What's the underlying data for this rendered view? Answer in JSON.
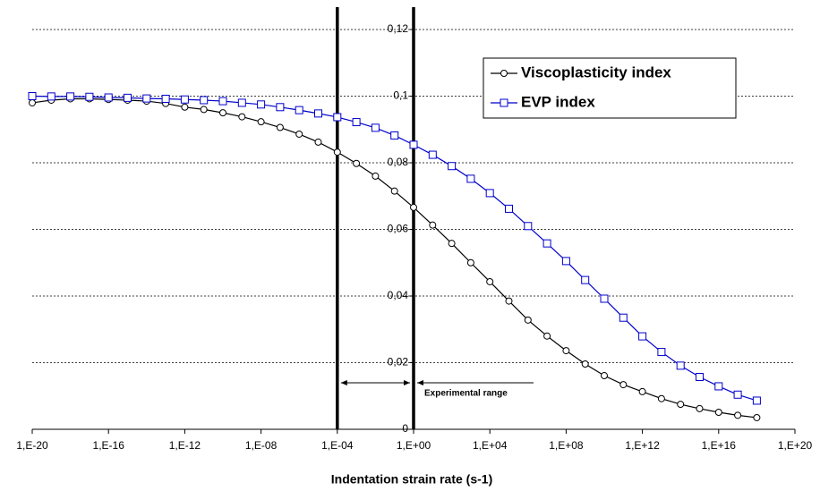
{
  "chart_data": {
    "type": "line",
    "x_label": "Indentation strain rate (s-1)",
    "x_log": true,
    "x": [
      1e-20,
      1e-19,
      1e-18,
      1e-17,
      1e-16,
      1e-15,
      1e-14,
      1e-13,
      1e-12,
      1e-11,
      1e-10,
      1e-09,
      1e-08,
      1e-07,
      1e-06,
      1e-05,
      0.0001,
      0.001,
      0.01,
      0.1,
      1,
      10.0,
      100.0,
      1000.0,
      10000.0,
      100000.0,
      1000000.0,
      10000000.0,
      100000000.0,
      1000000000.0,
      10000000000.0,
      100000000000.0,
      1000000000000.0,
      10000000000000.0,
      100000000000000.0,
      1000000000000000.0,
      1e+16,
      1e+17,
      1e+18
    ],
    "series": [
      {
        "name": "Viscoplasticity index",
        "color": "#000000",
        "marker": "circle",
        "values": [
          0.098,
          0.0988,
          0.0992,
          0.0992,
          0.099,
          0.0988,
          0.0985,
          0.0978,
          0.0967,
          0.096,
          0.095,
          0.0938,
          0.0923,
          0.0906,
          0.0886,
          0.0862,
          0.0832,
          0.0798,
          0.076,
          0.0715,
          0.0666,
          0.0613,
          0.0558,
          0.05,
          0.0443,
          0.0385,
          0.0328,
          0.028,
          0.0236,
          0.0196,
          0.0161,
          0.0134,
          0.0113,
          0.0092,
          0.0075,
          0.0062,
          0.0051,
          0.0042,
          0.0035
        ]
      },
      {
        "name": "EVP index",
        "color": "#0000cc",
        "marker": "square",
        "values": [
          0.1,
          0.0999,
          0.0999,
          0.0998,
          0.0996,
          0.0995,
          0.0993,
          0.0992,
          0.099,
          0.0988,
          0.0985,
          0.098,
          0.0975,
          0.0967,
          0.0958,
          0.0948,
          0.0937,
          0.0922,
          0.0905,
          0.0882,
          0.0854,
          0.0824,
          0.079,
          0.0752,
          0.0709,
          0.0662,
          0.061,
          0.0558,
          0.0505,
          0.0448,
          0.0392,
          0.0335,
          0.0279,
          0.0232,
          0.0191,
          0.0157,
          0.0129,
          0.0104,
          0.0086
        ]
      }
    ],
    "xlim": [
      1e-20,
      1e+20
    ],
    "xticks": [
      {
        "value": 1e-20,
        "label": "1,E-20"
      },
      {
        "value": 1e-16,
        "label": "1,E-16"
      },
      {
        "value": 1e-12,
        "label": "1,E-12"
      },
      {
        "value": 1e-08,
        "label": "1,E-08"
      },
      {
        "value": 0.0001,
        "label": "1,E-04"
      },
      {
        "value": 1,
        "label": "1,E+00"
      },
      {
        "value": 10000.0,
        "label": "1,E+04"
      },
      {
        "value": 100000000.0,
        "label": "1,E+08"
      },
      {
        "value": 1000000000000.0,
        "label": "1,E+12"
      },
      {
        "value": 1e+16,
        "label": "1,E+16"
      },
      {
        "value": 1e+20,
        "label": "1,E+20"
      }
    ],
    "ylim": [
      0,
      0.12
    ],
    "yticks": [
      0,
      {
        "value": 0.02,
        "label": "0,02"
      },
      {
        "value": 0.04,
        "label": "0,04"
      },
      {
        "value": 0.06,
        "label": "0,06"
      },
      {
        "value": 0.08,
        "label": "0,08"
      },
      {
        "value": 0.1,
        "label": "0,1"
      },
      {
        "value": 0.12,
        "label": "0,12"
      }
    ],
    "grid": true,
    "legend": "upper right",
    "experimental_range": {
      "label": "Experimental range",
      "x": [
        0.0001,
        1
      ]
    }
  }
}
